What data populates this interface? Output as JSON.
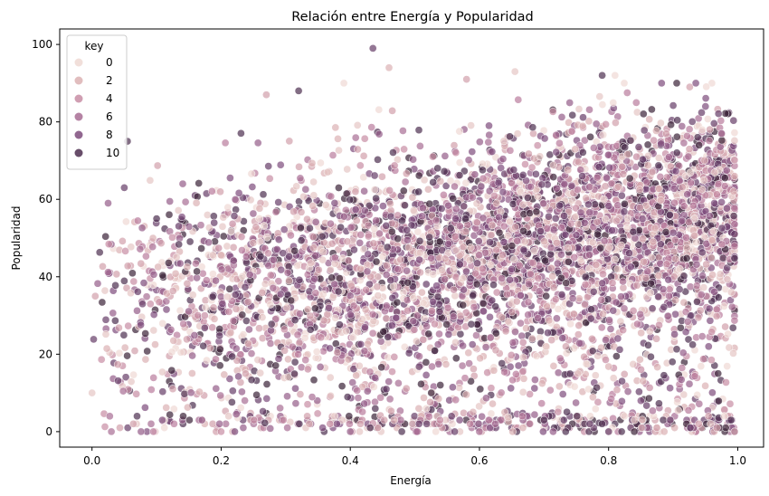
{
  "chart_data": {
    "type": "scatter",
    "title": "Relación entre Energía y Popularidad",
    "xlabel": "Energía",
    "ylabel": "Popularidad",
    "xlim": [
      -0.05,
      1.04
    ],
    "ylim": [
      -4,
      104
    ],
    "x_ticks": [
      0.0,
      0.2,
      0.4,
      0.6,
      0.8,
      1.0
    ],
    "x_tick_labels": [
      "0.0",
      "0.2",
      "0.4",
      "0.6",
      "0.8",
      "1.0"
    ],
    "y_ticks": [
      0,
      20,
      40,
      60,
      80,
      100
    ],
    "y_tick_labels": [
      "0",
      "20",
      "40",
      "60",
      "80",
      "100"
    ],
    "grid": false,
    "legend": {
      "title": "key",
      "placement": "top-left",
      "entries": [
        {
          "label": "0",
          "color": "#efd9d4"
        },
        {
          "label": "2",
          "color": "#dcb1b3"
        },
        {
          "label": "4",
          "color": "#c88da4"
        },
        {
          "label": "6",
          "color": "#a86d94"
        },
        {
          "label": "8",
          "color": "#7e4c7c"
        },
        {
          "label": "10",
          "color": "#4d2f50"
        }
      ]
    },
    "hue_palette": [
      "#efd9d4",
      "#e6c6c4",
      "#dcb1b3",
      "#d29fab",
      "#c88da4",
      "#b97c9c",
      "#a86d94",
      "#945d89",
      "#7e4c7c",
      "#673d68",
      "#4d2f50",
      "#3a2238"
    ],
    "marker_alpha": 0.7,
    "marker_edge": "#ffffff",
    "sample_points": [
      {
        "x": 0.435,
        "y": 99,
        "key": 9
      },
      {
        "x": 0.46,
        "y": 94,
        "key": 2
      },
      {
        "x": 0.655,
        "y": 93,
        "key": 1
      },
      {
        "x": 0.79,
        "y": 92,
        "key": 10
      },
      {
        "x": 0.81,
        "y": 92,
        "key": 0
      },
      {
        "x": 0.58,
        "y": 91,
        "key": 3
      },
      {
        "x": 0.935,
        "y": 90,
        "key": 8
      },
      {
        "x": 0.39,
        "y": 90,
        "key": 0
      },
      {
        "x": 0.32,
        "y": 88,
        "key": 10
      },
      {
        "x": 0.055,
        "y": 75,
        "key": 10
      },
      {
        "x": 0.05,
        "y": 63,
        "key": 9
      },
      {
        "x": 0.025,
        "y": 59,
        "key": 7
      },
      {
        "x": 0.005,
        "y": 35,
        "key": 3
      },
      {
        "x": 0.0,
        "y": 10,
        "key": 1
      },
      {
        "x": 0.03,
        "y": 0,
        "key": 6
      },
      {
        "x": 0.995,
        "y": 66,
        "key": 2
      },
      {
        "x": 0.995,
        "y": 51,
        "key": 9
      },
      {
        "x": 0.99,
        "y": 36,
        "key": 1
      },
      {
        "x": 0.995,
        "y": 0,
        "key": 3
      },
      {
        "x": 0.975,
        "y": 77,
        "key": 7
      },
      {
        "x": 0.95,
        "y": 84,
        "key": 8
      },
      {
        "x": 0.27,
        "y": 87,
        "key": 3
      },
      {
        "x": 0.1,
        "y": 55,
        "key": 10
      },
      {
        "x": 0.095,
        "y": 0,
        "key": 5
      },
      {
        "x": 0.2,
        "y": 0,
        "key": 4
      },
      {
        "x": 0.4,
        "y": 0,
        "key": 7
      },
      {
        "x": 0.6,
        "y": 0,
        "key": 6
      },
      {
        "x": 0.8,
        "y": 0,
        "key": 9
      },
      {
        "x": 0.7,
        "y": 3,
        "key": 10
      },
      {
        "x": 0.85,
        "y": 8,
        "key": 8
      }
    ]
  }
}
